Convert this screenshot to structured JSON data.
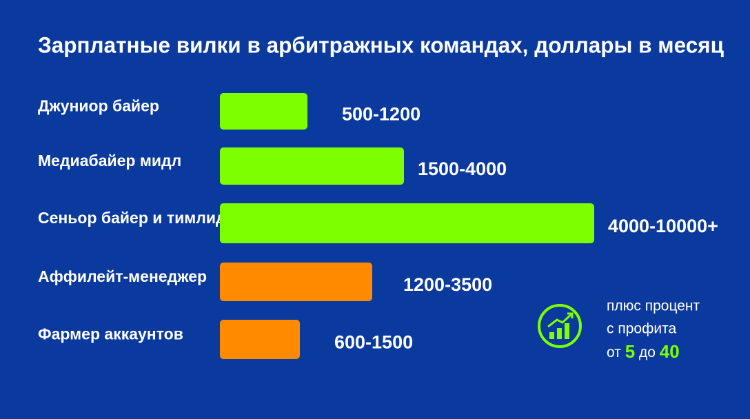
{
  "chart_data": {
    "type": "bar",
    "title": "Зарплатные вилки в арбитражных командах, доллары в месяц",
    "categories": [
      "Джуниор байер",
      "Медиабайер мидл",
      "Сеньор байер и тимлид",
      "Аффилейт-менеджер",
      "Фармер аккаунтов"
    ],
    "values": [
      [
        500,
        1200
      ],
      [
        1500,
        4000
      ],
      [
        4000,
        10000
      ],
      [
        1200,
        3500
      ],
      [
        600,
        1500
      ]
    ],
    "value_labels": [
      "500-1200",
      "1500-4000",
      "4000-10000+",
      "1200-3500",
      "600-1500"
    ],
    "colors": [
      "#7dff00",
      "#7dff00",
      "#7dff00",
      "#ff8a00",
      "#ff8a00"
    ],
    "annotation": {
      "lines": [
        "плюс процент",
        "с профита"
      ],
      "from": "от",
      "low": "5",
      "to": "до",
      "high": "40"
    }
  }
}
